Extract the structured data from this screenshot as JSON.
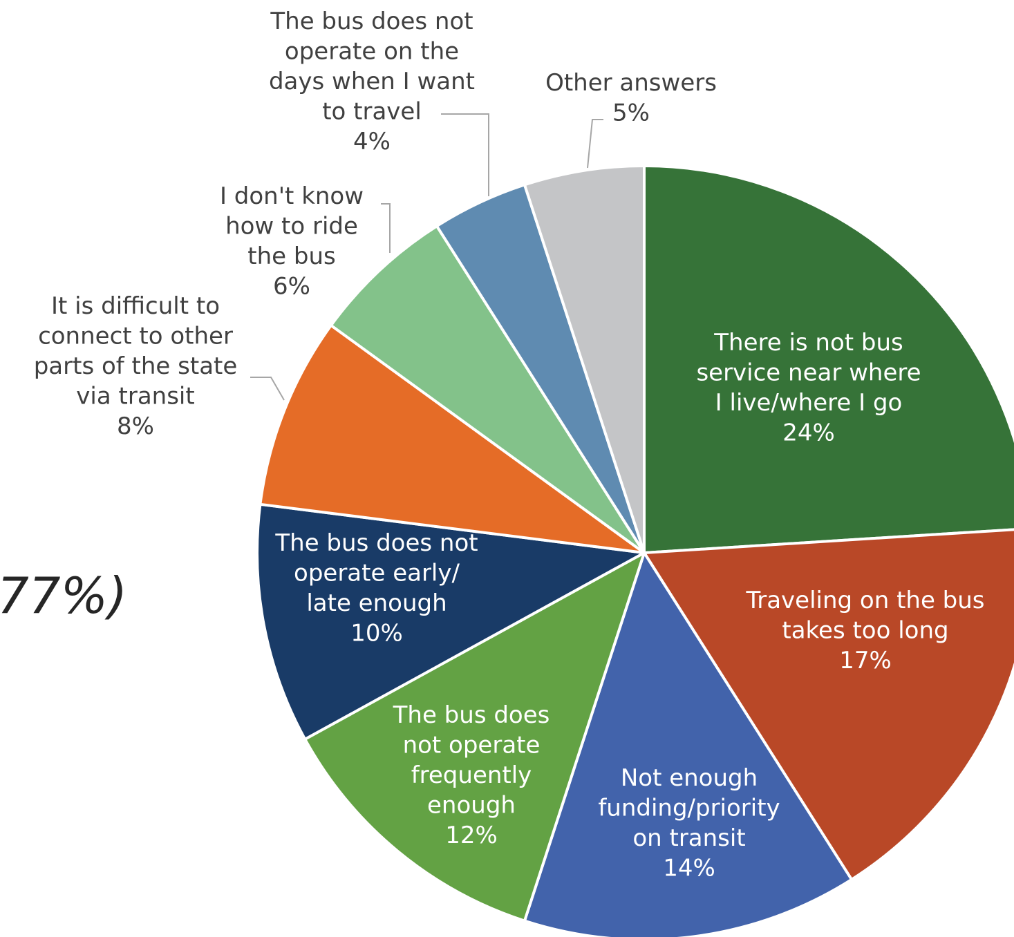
{
  "partial_text": "77%)",
  "chart_data": {
    "type": "pie",
    "slices": [
      {
        "label": [
          "There is not bus",
          "service near where",
          "I live/where I go"
        ],
        "value": 24,
        "value_label": "24%",
        "color": "#367338"
      },
      {
        "label": [
          "Traveling on the bus",
          "takes too long"
        ],
        "value": 17,
        "value_label": "17%",
        "color": "#b94827"
      },
      {
        "label": [
          "Not enough",
          "funding/priority",
          "on transit"
        ],
        "value": 14,
        "value_label": "14%",
        "color": "#4263ab"
      },
      {
        "label": [
          "The bus does",
          "not operate",
          "frequently",
          "enough"
        ],
        "value": 12,
        "value_label": "12%",
        "color": "#63a244"
      },
      {
        "label": [
          "The bus does not",
          "operate early/",
          "late enough"
        ],
        "value": 10,
        "value_label": "10%",
        "color": "#193b67"
      },
      {
        "label": [
          "It is difficult to",
          "connect to other",
          "parts of the state",
          "via transit"
        ],
        "value": 8,
        "value_label": "8%",
        "color": "#e56c27"
      },
      {
        "label": [
          "I don't know",
          "how to ride",
          "the bus"
        ],
        "value": 6,
        "value_label": "6%",
        "color": "#83c28a"
      },
      {
        "label": [
          "The bus does not",
          "operate on the",
          "days when I want",
          "to travel"
        ],
        "value": 4,
        "value_label": "4%",
        "color": "#5f8bb1"
      },
      {
        "label": [
          "Other answers"
        ],
        "value": 5,
        "value_label": "5%",
        "color": "#c4c5c7"
      }
    ]
  }
}
